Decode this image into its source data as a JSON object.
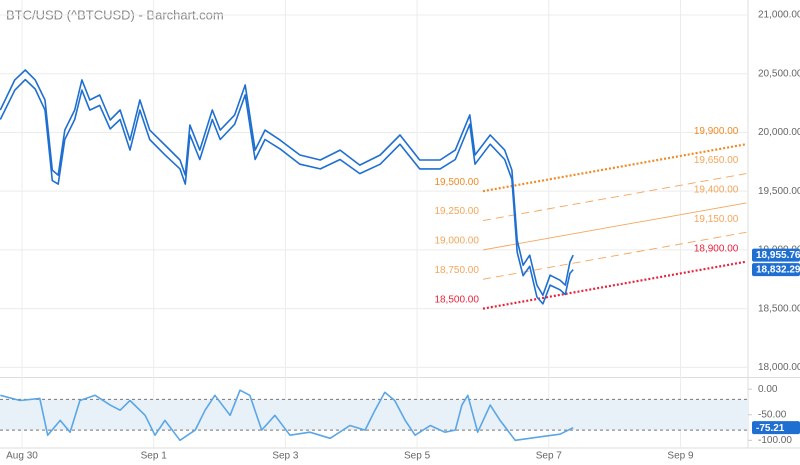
{
  "chart_data": [
    {
      "type": "line",
      "title": "BTC/USD (^BTCUSD) - Barchart.com",
      "xlim": [
        -0.334,
        11.025
      ],
      "xticks": [
        {
          "value": 0,
          "label": "Aug 30"
        },
        {
          "value": 2,
          "label": "Sep 1"
        },
        {
          "value": 4,
          "label": "Sep 3"
        },
        {
          "value": 6,
          "label": "Sep 5"
        },
        {
          "value": 8,
          "label": "Sep 7"
        },
        {
          "value": 10,
          "label": "Sep 9"
        }
      ],
      "ylim": [
        17935,
        21085
      ],
      "yticks": [
        {
          "value": 18000,
          "label": "18,000.00"
        },
        {
          "value": 18500,
          "label": "18,500.00"
        },
        {
          "value": 19000,
          "label": "19,000.00"
        },
        {
          "value": 19500,
          "label": "19,500.00"
        },
        {
          "value": 20000,
          "label": "20,000.00"
        },
        {
          "value": 20500,
          "label": "20,500.00"
        },
        {
          "value": 21000,
          "label": "21,000.00"
        }
      ],
      "grid": true,
      "x": [
        -0.33,
        -0.11,
        0.05,
        0.2,
        0.35,
        0.46,
        0.55,
        0.65,
        0.8,
        0.91,
        1.03,
        1.18,
        1.34,
        1.49,
        1.64,
        1.79,
        1.94,
        2.17,
        2.4,
        2.48,
        2.55,
        2.7,
        2.89,
        3.01,
        3.23,
        3.39,
        3.54,
        3.69,
        3.92,
        4.22,
        4.53,
        4.83,
        5.13,
        5.44,
        5.74,
        6.04,
        6.35,
        6.58,
        6.8,
        6.88,
        7.11,
        7.33,
        7.44,
        7.52,
        7.61,
        7.71,
        7.82,
        7.91,
        8.02,
        8.17,
        8.25,
        8.32,
        8.37
      ],
      "series": [
        {
          "color": "#1f6fd1",
          "values": [
            20191,
            20447,
            20532,
            20447,
            20276,
            19679,
            19637,
            20020,
            20191,
            20447,
            20276,
            20319,
            20106,
            20191,
            19935,
            20276,
            20020,
            19893,
            19765,
            19637,
            20063,
            19850,
            20191,
            20020,
            20149,
            20404,
            19850,
            20020,
            19935,
            19808,
            19765,
            19850,
            19722,
            19808,
            19978,
            19765,
            19765,
            19850,
            20149,
            19808,
            19978,
            19850,
            19679,
            19083,
            18870,
            18955,
            18700,
            18614,
            18785,
            18742,
            18700,
            18896,
            18955.76
          ]
        },
        {
          "color": "#1f6fd1",
          "values": [
            20110,
            20360,
            20450,
            20370,
            20190,
            19590,
            19560,
            19940,
            20110,
            20360,
            20190,
            20230,
            20030,
            20110,
            19850,
            20190,
            19940,
            19810,
            19690,
            19560,
            19980,
            19770,
            20110,
            19940,
            20070,
            20320,
            19770,
            19940,
            19860,
            19730,
            19690,
            19770,
            19650,
            19730,
            19900,
            19690,
            19690,
            19770,
            20070,
            19730,
            19900,
            19770,
            19600,
            18980,
            18780,
            18860,
            18600,
            18540,
            18700,
            18660,
            18620,
            18800,
            18832.29
          ]
        }
      ],
      "price_tags": [
        {
          "value": 18955.76,
          "label": "18,955.76"
        },
        {
          "value": 18832.29,
          "label": "18,832.29"
        }
      ],
      "channel": {
        "x": [
          7.0,
          11.0
        ],
        "levels": [
          {
            "start": 19500,
            "end": 19900,
            "start_label": "19,500.00",
            "end_label": "19,900.00",
            "color": "#f08a24",
            "style": "dotted"
          },
          {
            "start": 19250,
            "end": 19650,
            "start_label": "19,250.00",
            "end_label": "19,650.00",
            "color": "#f5a55a",
            "style": "dashed"
          },
          {
            "start": 19000,
            "end": 19400,
            "start_label": "19,000.00",
            "end_label": "19,400.00",
            "color": "#f5a55a",
            "style": "solid"
          },
          {
            "start": 18750,
            "end": 19150,
            "start_label": "18,750.00",
            "end_label": "19,150.00",
            "color": "#f5a55a",
            "style": "dashed"
          },
          {
            "start": 18500,
            "end": 18900,
            "start_label": "18,500.00",
            "end_label": "18,900.00",
            "color": "#e8243c",
            "style": "dotted"
          }
        ]
      }
    },
    {
      "type": "line",
      "ylim": [
        -115,
        18
      ],
      "yticks": [
        {
          "value": 0,
          "label": "0.00"
        },
        {
          "value": -50,
          "label": "-50.00"
        },
        {
          "value": -100,
          "label": "-100.00"
        }
      ],
      "bands": [
        -20,
        -80
      ],
      "x": [
        -0.33,
        -0.03,
        0.27,
        0.39,
        0.58,
        0.73,
        0.88,
        1.11,
        1.34,
        1.49,
        1.64,
        1.87,
        2.02,
        2.17,
        2.4,
        2.63,
        2.78,
        2.93,
        3.16,
        3.31,
        3.46,
        3.64,
        3.84,
        4.07,
        4.37,
        4.68,
        4.98,
        5.21,
        5.36,
        5.51,
        5.66,
        5.82,
        5.97,
        6.2,
        6.42,
        6.58,
        6.68,
        6.77,
        6.92,
        7.11,
        7.26,
        7.49,
        7.71,
        7.94,
        8.17,
        8.37
      ],
      "series": [
        {
          "color": "#5aa6e6",
          "values": [
            -12,
            -22,
            -18,
            -90,
            -61,
            -84,
            -22,
            -12,
            -31,
            -41,
            -22,
            -51,
            -90,
            -61,
            -100,
            -80,
            -41,
            -12,
            -51,
            -2,
            -12,
            -80,
            -51,
            -90,
            -84,
            -96,
            -71,
            -80,
            -41,
            -6,
            -22,
            -61,
            -90,
            -71,
            -84,
            -80,
            -31,
            -12,
            -84,
            -31,
            -61,
            -100,
            -96,
            -92,
            -88,
            -75.21
          ]
        }
      ],
      "price_tags": [
        {
          "value": -75.21,
          "label": "-75.21"
        }
      ]
    }
  ]
}
